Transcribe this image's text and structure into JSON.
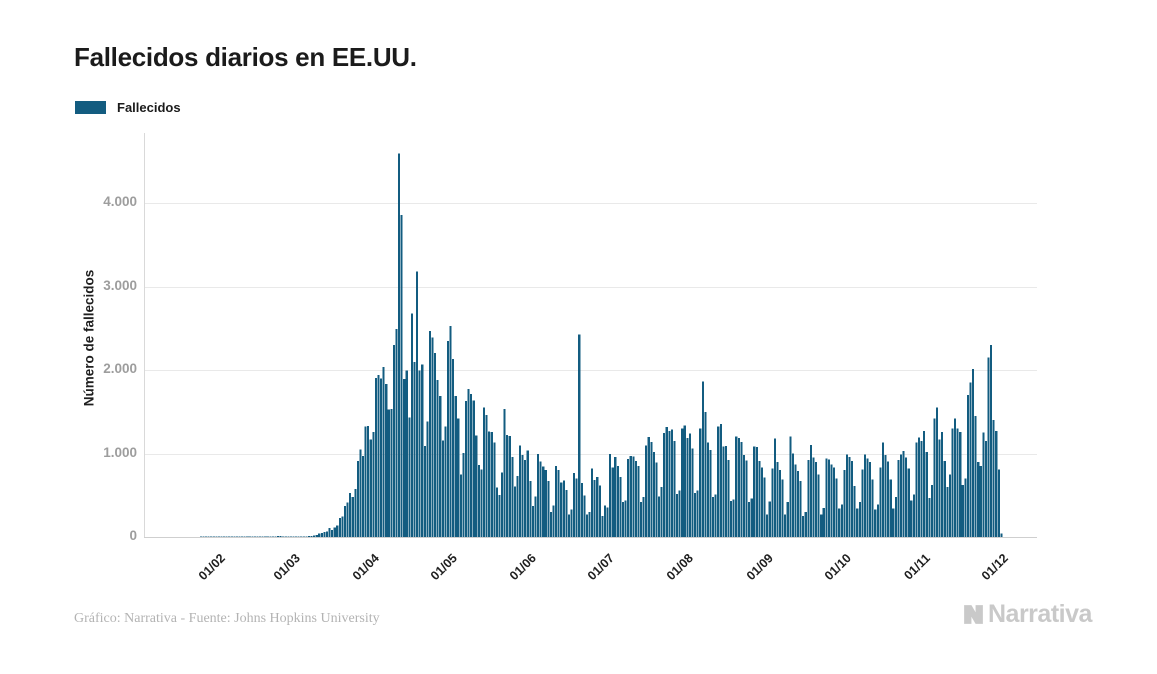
{
  "header": {
    "title": "Fallecidos diarios en EE.UU."
  },
  "footer": {
    "credit": "Gráfico: Narrativa - Fuente: Johns Hopkins University",
    "logo_text": "Narrativa"
  },
  "chart_data": {
    "type": "bar",
    "title": "Fallecidos diarios en EE.UU.",
    "series_name": "Fallecidos",
    "xlabel": "",
    "ylabel": "Número de fallecidos",
    "ylim": [
      0,
      4600
    ],
    "grid": "horizontal",
    "legend_position": "top-left",
    "bar_color": "#135c80",
    "gridline_color": "#e9e9e9",
    "baseline_color": "#cfcfcf",
    "axisline_color": "#d9d9d9",
    "y_ticks": [
      {
        "value": 0,
        "label": "0"
      },
      {
        "value": 1000,
        "label": "1.000"
      },
      {
        "value": 2000,
        "label": "2.000"
      },
      {
        "value": 3000,
        "label": "3.000"
      },
      {
        "value": 4000,
        "label": "4.000"
      }
    ],
    "x_ticks": [
      {
        "label": "01/02",
        "day": 7
      },
      {
        "label": "01/03",
        "day": 36
      },
      {
        "label": "01/04",
        "day": 67
      },
      {
        "label": "01/05",
        "day": 97
      },
      {
        "label": "01/06",
        "day": 128
      },
      {
        "label": "01/07",
        "day": 158
      },
      {
        "label": "01/08",
        "day": 189
      },
      {
        "label": "01/09",
        "day": 220
      },
      {
        "label": "01/10",
        "day": 250
      },
      {
        "label": "01/11",
        "day": 281
      },
      {
        "label": "01/12",
        "day": 311
      }
    ],
    "x_unit": "day",
    "values": [
      0,
      0,
      0,
      0,
      0,
      1,
      1,
      1,
      1,
      2,
      1,
      1,
      2,
      1,
      2,
      2,
      1,
      2,
      3,
      2,
      3,
      2,
      3,
      4,
      3,
      4,
      5,
      4,
      5,
      6,
      5,
      6,
      7,
      8,
      9,
      10,
      12,
      6,
      4,
      3,
      5,
      4,
      4,
      5,
      6,
      7,
      8,
      12,
      10,
      18,
      23,
      41,
      50,
      59,
      68,
      110,
      85,
      111,
      140,
      225,
      247,
      372,
      411,
      525,
      480,
      573,
      912,
      1049,
      968,
      1321,
      1331,
      1165,
      1255,
      1906,
      1940,
      1900,
      2035,
      1830,
      1528,
      1535,
      2299,
      2494,
      4591,
      3857,
      1891,
      1997,
      1433,
      2674,
      2097,
      3179,
      1993,
      2065,
      1087,
      1384,
      2470,
      2390,
      2201,
      1883,
      1691,
      1154,
      1324,
      2350,
      2528,
      2129,
      1687,
      1422,
      750,
      1008,
      1630,
      1772,
      1715,
      1635,
      1218,
      865,
      808,
      1552,
      1461,
      1263,
      1260,
      1129,
      592,
      505,
      774,
      1535,
      1223,
      1212,
      960,
      605,
      730,
      1093,
      982,
      921,
      1036,
      670,
      373,
      483,
      993,
      905,
      842,
      800,
      671,
      300,
      380,
      851,
      803,
      655,
      678,
      560,
      270,
      327,
      767,
      700,
      2425,
      648,
      500,
      267,
      301,
      818,
      685,
      718,
      614,
      254,
      376,
      352,
      993,
      834,
      960,
      849,
      716,
      420,
      435,
      935,
      971,
      963,
      908,
      850,
      420,
      478,
      1093,
      1195,
      1140,
      1019,
      895,
      483,
      598,
      1244,
      1319,
      1270,
      1290,
      1148,
      515,
      557,
      1302,
      1337,
      1185,
      1241,
      1058,
      530,
      556,
      1300,
      1863,
      1499,
      1130,
      1040,
      480,
      511,
      1324,
      1356,
      1082,
      1090,
      920,
      430,
      450,
      1205,
      1183,
      1135,
      983,
      915,
      420,
      460,
      1083,
      1077,
      910,
      830,
      710,
      267,
      426,
      820,
      1177,
      900,
      800,
      690,
      267,
      420,
      1202,
      1000,
      870,
      790,
      670,
      250,
      300,
      920,
      1100,
      950,
      900,
      750,
      270,
      350,
      940,
      930,
      870,
      830,
      700,
      340,
      390,
      800,
      990,
      960,
      910,
      610,
      340,
      420,
      810,
      990,
      940,
      900,
      690,
      330,
      390,
      830,
      1130,
      980,
      905,
      690,
      340,
      480,
      920,
      990,
      1030,
      950,
      820,
      440,
      510,
      1130,
      1190,
      1150,
      1270,
      1020,
      470,
      620,
      1420,
      1550,
      1170,
      1260,
      910,
      600,
      750,
      1300,
      1420,
      1300,
      1260,
      620,
      700,
      1700,
      1850,
      2015,
      1450,
      900,
      850,
      1250,
      1150,
      2150,
      2300,
      1400,
      1270,
      810,
      40
    ]
  }
}
